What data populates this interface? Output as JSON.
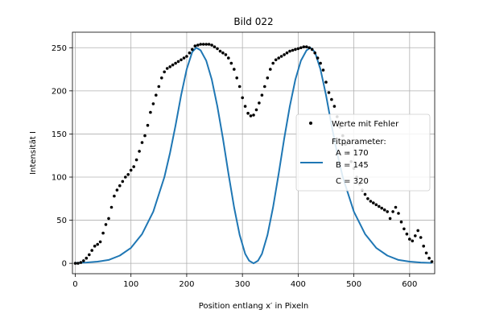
{
  "chart_data": {
    "type": "scatter",
    "title": "Bild 022",
    "xlabel": "Position entlang x′ in Pixeln",
    "ylabel": "Intensität I",
    "xlim": [
      -5,
      645
    ],
    "ylim": [
      -12,
      268
    ],
    "xticks": [
      0,
      100,
      200,
      300,
      400,
      500,
      600
    ],
    "yticks": [
      0,
      50,
      100,
      150,
      200,
      250
    ],
    "grid": true,
    "legend_position": "center-right",
    "legend": {
      "points_label": "Werte mit Fehler",
      "fit_label": [
        "Fitparameter:",
        "A = 170",
        "B = 145",
        "C = 320"
      ]
    },
    "colors": {
      "points": "#000000",
      "fit": "#1f77b4"
    },
    "series": [
      {
        "name": "Werte mit Fehler",
        "type": "scatter",
        "points": [
          [
            0,
            0
          ],
          [
            5,
            0
          ],
          [
            10,
            1
          ],
          [
            15,
            3
          ],
          [
            20,
            6
          ],
          [
            25,
            10
          ],
          [
            30,
            15
          ],
          [
            35,
            20
          ],
          [
            40,
            22
          ],
          [
            45,
            25
          ],
          [
            50,
            35
          ],
          [
            55,
            45
          ],
          [
            60,
            52
          ],
          [
            65,
            65
          ],
          [
            70,
            78
          ],
          [
            75,
            85
          ],
          [
            80,
            90
          ],
          [
            85,
            95
          ],
          [
            90,
            100
          ],
          [
            95,
            103
          ],
          [
            100,
            108
          ],
          [
            105,
            112
          ],
          [
            110,
            120
          ],
          [
            115,
            130
          ],
          [
            120,
            140
          ],
          [
            125,
            148
          ],
          [
            130,
            160
          ],
          [
            135,
            175
          ],
          [
            140,
            185
          ],
          [
            145,
            195
          ],
          [
            150,
            205
          ],
          [
            155,
            215
          ],
          [
            160,
            222
          ],
          [
            165,
            226
          ],
          [
            170,
            228
          ],
          [
            175,
            230
          ],
          [
            180,
            232
          ],
          [
            185,
            234
          ],
          [
            190,
            236
          ],
          [
            195,
            238
          ],
          [
            200,
            240
          ],
          [
            205,
            244
          ],
          [
            210,
            248
          ],
          [
            215,
            252
          ],
          [
            220,
            253
          ],
          [
            225,
            254
          ],
          [
            230,
            254
          ],
          [
            235,
            254
          ],
          [
            240,
            254
          ],
          [
            245,
            253
          ],
          [
            250,
            251
          ],
          [
            255,
            249
          ],
          [
            260,
            246
          ],
          [
            265,
            244
          ],
          [
            270,
            242
          ],
          [
            275,
            238
          ],
          [
            280,
            232
          ],
          [
            285,
            225
          ],
          [
            290,
            215
          ],
          [
            295,
            205
          ],
          [
            300,
            192
          ],
          [
            305,
            182
          ],
          [
            310,
            174
          ],
          [
            315,
            171
          ],
          [
            320,
            172
          ],
          [
            325,
            178
          ],
          [
            330,
            186
          ],
          [
            335,
            195
          ],
          [
            340,
            205
          ],
          [
            345,
            215
          ],
          [
            350,
            225
          ],
          [
            355,
            232
          ],
          [
            360,
            236
          ],
          [
            365,
            238
          ],
          [
            370,
            240
          ],
          [
            375,
            242
          ],
          [
            380,
            244
          ],
          [
            385,
            246
          ],
          [
            390,
            247
          ],
          [
            395,
            248
          ],
          [
            400,
            249
          ],
          [
            405,
            250
          ],
          [
            410,
            251
          ],
          [
            415,
            251
          ],
          [
            420,
            250
          ],
          [
            425,
            248
          ],
          [
            430,
            244
          ],
          [
            435,
            238
          ],
          [
            440,
            232
          ],
          [
            445,
            224
          ],
          [
            450,
            210
          ],
          [
            455,
            198
          ],
          [
            460,
            190
          ],
          [
            465,
            182
          ],
          [
            470,
            170
          ],
          [
            475,
            158
          ],
          [
            480,
            148
          ],
          [
            485,
            138
          ],
          [
            490,
            128
          ],
          [
            495,
            118
          ],
          [
            500,
            110
          ],
          [
            505,
            100
          ],
          [
            510,
            92
          ],
          [
            515,
            85
          ],
          [
            520,
            80
          ],
          [
            525,
            75
          ],
          [
            530,
            72
          ],
          [
            535,
            70
          ],
          [
            540,
            68
          ],
          [
            545,
            66
          ],
          [
            550,
            64
          ],
          [
            555,
            62
          ],
          [
            560,
            60
          ],
          [
            565,
            52
          ],
          [
            570,
            60
          ],
          [
            575,
            65
          ],
          [
            580,
            58
          ],
          [
            585,
            48
          ],
          [
            590,
            40
          ],
          [
            595,
            34
          ],
          [
            600,
            28
          ],
          [
            605,
            26
          ],
          [
            610,
            32
          ],
          [
            615,
            38
          ],
          [
            620,
            30
          ],
          [
            625,
            20
          ],
          [
            630,
            12
          ],
          [
            635,
            6
          ],
          [
            640,
            2
          ]
        ]
      },
      {
        "name": "Fitparameter",
        "type": "line",
        "model": "A*sin(pi*(x-C)/B)^2/(pi*(x-C)/B)^2 + sin(pi*(x-C)/B)^2 scaled",
        "A": 170,
        "B": 145,
        "C": 320,
        "points": [
          [
            0,
            0.5
          ],
          [
            20,
            1
          ],
          [
            40,
            2
          ],
          [
            60,
            4
          ],
          [
            80,
            9
          ],
          [
            100,
            18
          ],
          [
            120,
            34
          ],
          [
            140,
            60
          ],
          [
            160,
            100
          ],
          [
            170,
            128
          ],
          [
            180,
            160
          ],
          [
            190,
            195
          ],
          [
            200,
            225
          ],
          [
            210,
            245
          ],
          [
            217,
            250
          ],
          [
            225,
            247
          ],
          [
            235,
            235
          ],
          [
            245,
            213
          ],
          [
            255,
            182
          ],
          [
            265,
            145
          ],
          [
            275,
            104
          ],
          [
            285,
            65
          ],
          [
            295,
            33
          ],
          [
            305,
            11
          ],
          [
            312,
            3
          ],
          [
            320,
            0
          ],
          [
            328,
            3
          ],
          [
            335,
            11
          ],
          [
            345,
            33
          ],
          [
            355,
            65
          ],
          [
            365,
            104
          ],
          [
            375,
            145
          ],
          [
            385,
            182
          ],
          [
            395,
            213
          ],
          [
            405,
            235
          ],
          [
            415,
            247
          ],
          [
            422,
            250
          ],
          [
            430,
            245
          ],
          [
            440,
            225
          ],
          [
            450,
            195
          ],
          [
            460,
            160
          ],
          [
            470,
            128
          ],
          [
            480,
            100
          ],
          [
            500,
            60
          ],
          [
            520,
            34
          ],
          [
            540,
            18
          ],
          [
            560,
            9
          ],
          [
            580,
            4
          ],
          [
            600,
            2
          ],
          [
            620,
            1
          ],
          [
            640,
            0.5
          ]
        ]
      }
    ]
  }
}
